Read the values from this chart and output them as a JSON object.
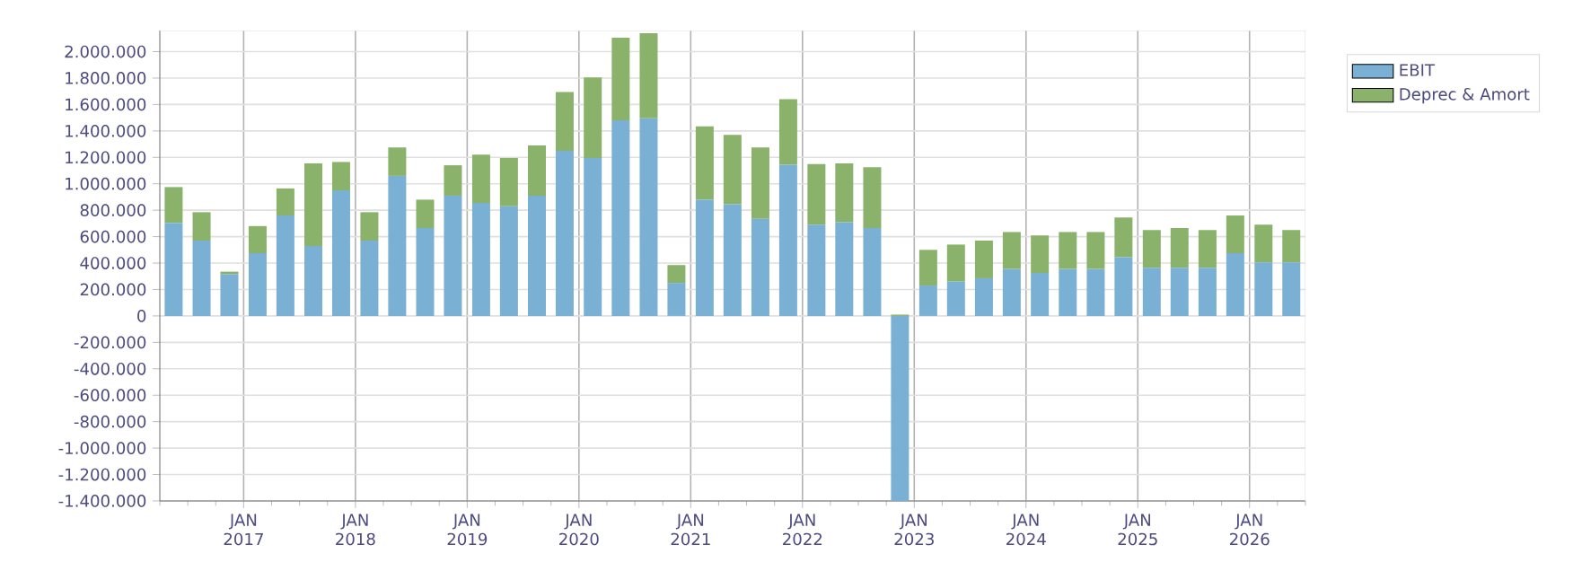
{
  "chart_data": {
    "type": "bar",
    "stacked": true,
    "x": [
      "2016-05-16",
      "2016-08-16",
      "2016-11-15",
      "2017-02-15",
      "2017-05-16",
      "2017-08-16",
      "2017-11-15",
      "2018-02-15",
      "2018-05-16",
      "2018-08-16",
      "2018-11-15",
      "2019-02-15",
      "2019-05-16",
      "2019-08-16",
      "2019-11-15",
      "2020-02-15",
      "2020-05-16",
      "2020-08-16",
      "2020-11-15",
      "2021-02-15",
      "2021-05-16",
      "2021-08-16",
      "2021-11-15",
      "2022-02-15",
      "2022-05-16",
      "2022-08-16",
      "2022-11-15",
      "2023-02-15",
      "2023-05-16",
      "2023-08-16",
      "2023-11-15",
      "2024-02-15",
      "2024-05-16",
      "2024-08-16",
      "2024-11-15",
      "2025-02-15",
      "2025-05-16",
      "2025-08-16",
      "2025-11-15",
      "2026-02-15",
      "2026-05-16"
    ],
    "series": [
      {
        "name": "EBIT",
        "color": "#7ab0d4",
        "values": [
          705000,
          570000,
          315000,
          475000,
          760000,
          530000,
          950000,
          570000,
          1060000,
          665000,
          910000,
          855000,
          830000,
          910000,
          1250000,
          1195000,
          1480000,
          1495000,
          250000,
          880000,
          845000,
          735000,
          1145000,
          690000,
          710000,
          665000,
          -1400000,
          230000,
          260000,
          285000,
          355000,
          325000,
          355000,
          355000,
          445000,
          365000,
          365000,
          365000,
          475000,
          405000,
          405000
        ]
      },
      {
        "name": "Deprec & Amort",
        "color": "#8ab26a",
        "values": [
          270000,
          215000,
          20000,
          205000,
          205000,
          625000,
          215000,
          215000,
          215000,
          215000,
          230000,
          365000,
          365000,
          380000,
          445000,
          610000,
          625000,
          645000,
          135000,
          555000,
          525000,
          540000,
          495000,
          460000,
          445000,
          460000,
          10000,
          270000,
          280000,
          285000,
          280000,
          285000,
          280000,
          280000,
          300000,
          285000,
          300000,
          285000,
          285000,
          285000,
          245000
        ]
      }
    ],
    "xlim": [
      "2016-04",
      "2026-07"
    ],
    "xticks": [
      {
        "value": "2016-04",
        "label": null
      },
      {
        "value": "2016-07",
        "label": null
      },
      {
        "value": "2016-10",
        "label": null
      },
      {
        "value": "2017-01",
        "label": "JAN 2017"
      },
      {
        "value": "2017-04",
        "label": null
      },
      {
        "value": "2017-07",
        "label": null
      },
      {
        "value": "2017-10",
        "label": null
      },
      {
        "value": "2018-01",
        "label": "JAN 2018"
      },
      {
        "value": "2018-04",
        "label": null
      },
      {
        "value": "2018-07",
        "label": null
      },
      {
        "value": "2018-10",
        "label": null
      },
      {
        "value": "2019-01",
        "label": "JAN 2019"
      },
      {
        "value": "2019-04",
        "label": null
      },
      {
        "value": "2019-07",
        "label": null
      },
      {
        "value": "2019-10",
        "label": null
      },
      {
        "value": "2020-01",
        "label": "JAN 2020"
      },
      {
        "value": "2020-04",
        "label": null
      },
      {
        "value": "2020-07",
        "label": null
      },
      {
        "value": "2020-10",
        "label": null
      },
      {
        "value": "2021-01",
        "label": "JAN 2021"
      },
      {
        "value": "2021-04",
        "label": null
      },
      {
        "value": "2021-07",
        "label": null
      },
      {
        "value": "2021-10",
        "label": null
      },
      {
        "value": "2022-01",
        "label": "JAN 2022"
      },
      {
        "value": "2022-04",
        "label": null
      },
      {
        "value": "2022-07",
        "label": null
      },
      {
        "value": "2022-10",
        "label": null
      },
      {
        "value": "2023-01",
        "label": "JAN 2023"
      },
      {
        "value": "2023-04",
        "label": null
      },
      {
        "value": "2023-07",
        "label": null
      },
      {
        "value": "2023-10",
        "label": null
      },
      {
        "value": "2024-01",
        "label": "JAN 2024"
      },
      {
        "value": "2024-04",
        "label": null
      },
      {
        "value": "2024-07",
        "label": null
      },
      {
        "value": "2024-10",
        "label": null
      },
      {
        "value": "2025-01",
        "label": "JAN 2025"
      },
      {
        "value": "2025-04",
        "label": null
      },
      {
        "value": "2025-07",
        "label": null
      },
      {
        "value": "2025-10",
        "label": null
      },
      {
        "value": "2026-01",
        "label": "JAN 2026"
      },
      {
        "value": "2026-04",
        "label": null
      },
      {
        "value": "2026-07",
        "label": null
      }
    ],
    "ylim": [
      -1400000,
      2160000
    ],
    "yticks": [
      {
        "value": -1400000,
        "label": "-1.400.000"
      },
      {
        "value": -1200000,
        "label": "-1.200.000"
      },
      {
        "value": -1000000,
        "label": "-1.000.000"
      },
      {
        "value": -800000,
        "label": "-800.000"
      },
      {
        "value": -600000,
        "label": "-600.000"
      },
      {
        "value": -400000,
        "label": "-400.000"
      },
      {
        "value": -200000,
        "label": "-200.000"
      },
      0,
      {
        "value": 200000,
        "label": "200.000"
      },
      {
        "value": 400000,
        "label": "400.000"
      },
      {
        "value": 600000,
        "label": "600.000"
      },
      {
        "value": 800000,
        "label": "800.000"
      },
      {
        "value": 1000000,
        "label": "1.000.000"
      },
      {
        "value": 1200000,
        "label": "1.200.000"
      },
      {
        "value": 1400000,
        "label": "1.400.000"
      },
      {
        "value": 1600000,
        "label": "1.600.000"
      },
      {
        "value": 1800000,
        "label": "1.800.000"
      },
      {
        "value": 2000000,
        "label": "2.000.000"
      }
    ],
    "grid": true,
    "legend": "top right"
  }
}
